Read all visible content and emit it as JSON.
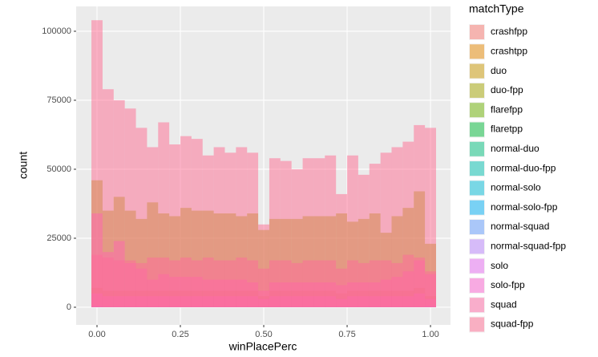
{
  "chart_data": {
    "type": "histogram",
    "x_label": "winPlacePerc",
    "y_label": "count",
    "legend_title": "matchType",
    "bins": [
      -0.0167,
      0.0167,
      0.05,
      0.0833,
      0.1167,
      0.15,
      0.1833,
      0.2167,
      0.25,
      0.2833,
      0.3167,
      0.35,
      0.3833,
      0.4167,
      0.45,
      0.4833,
      0.5167,
      0.55,
      0.5833,
      0.6167,
      0.65,
      0.6833,
      0.7167,
      0.75,
      0.7833,
      0.8167,
      0.85,
      0.8833,
      0.9167,
      0.95,
      0.9833,
      1.0167
    ],
    "xlim": [
      -0.0625,
      1.06
    ],
    "ylim": [
      -6400,
      109000
    ],
    "xticks": [
      {
        "value": 0,
        "label": "0.00"
      },
      {
        "value": 0.25,
        "label": "0.25"
      },
      {
        "value": 0.5,
        "label": "0.50"
      },
      {
        "value": 0.75,
        "label": "0.75"
      },
      {
        "value": 1,
        "label": "1.00"
      }
    ],
    "yticks": [
      0,
      25000,
      50000,
      75000,
      100000
    ],
    "grid": true,
    "opacity": 0.5,
    "series": [
      {
        "name": "crashfpp",
        "color": "#F8766D",
        "values": [
          300,
          200,
          200,
          200,
          200,
          200,
          200,
          200,
          200,
          200,
          200,
          200,
          200,
          200,
          200,
          100,
          200,
          200,
          200,
          200,
          200,
          200,
          200,
          200,
          200,
          200,
          200,
          200,
          200,
          200,
          300
        ]
      },
      {
        "name": "crashtpp",
        "color": "#E58700",
        "values": [
          20,
          10,
          10,
          10,
          10,
          10,
          10,
          10,
          10,
          10,
          10,
          10,
          10,
          10,
          10,
          10,
          10,
          10,
          10,
          10,
          10,
          10,
          10,
          10,
          10,
          10,
          10,
          10,
          10,
          10,
          20
        ]
      },
      {
        "name": "duo",
        "color": "#C99800",
        "values": [
          7000,
          6000,
          6000,
          6000,
          6000,
          6000,
          6000,
          6000,
          6000,
          6000,
          6000,
          6000,
          6000,
          6000,
          6000,
          4000,
          6000,
          6000,
          6000,
          6000,
          6000,
          6000,
          5000,
          6000,
          6000,
          6000,
          6000,
          6000,
          6000,
          7000,
          4000
        ]
      },
      {
        "name": "duo-fpp",
        "color": "#A3A500",
        "values": [
          46000,
          35000,
          40000,
          35000,
          32000,
          38000,
          34000,
          33000,
          36000,
          35000,
          35000,
          34000,
          34000,
          33000,
          34000,
          28000,
          32000,
          32000,
          32000,
          33000,
          33000,
          33000,
          34000,
          31000,
          32000,
          34000,
          27000,
          33000,
          36000,
          42000,
          23000
        ]
      },
      {
        "name": "flarefpp",
        "color": "#6BB100",
        "values": [
          100,
          50,
          50,
          50,
          50,
          50,
          50,
          50,
          50,
          50,
          50,
          50,
          50,
          50,
          50,
          30,
          50,
          50,
          50,
          50,
          50,
          50,
          50,
          50,
          50,
          50,
          50,
          50,
          50,
          50,
          100
        ]
      },
      {
        "name": "flaretpp",
        "color": "#00BA38",
        "values": [
          300,
          150,
          150,
          150,
          150,
          150,
          150,
          150,
          150,
          150,
          150,
          150,
          150,
          150,
          150,
          100,
          150,
          150,
          150,
          150,
          150,
          150,
          150,
          150,
          150,
          150,
          150,
          150,
          150,
          150,
          300
        ]
      },
      {
        "name": "normal-duo",
        "color": "#00BF7D",
        "values": [
          10,
          5,
          5,
          5,
          5,
          5,
          5,
          5,
          5,
          5,
          5,
          5,
          5,
          5,
          5,
          5,
          5,
          5,
          5,
          5,
          5,
          5,
          5,
          5,
          5,
          5,
          5,
          5,
          5,
          5,
          10
        ]
      },
      {
        "name": "normal-duo-fpp",
        "color": "#00C0AF",
        "values": [
          200,
          100,
          100,
          100,
          100,
          100,
          100,
          100,
          100,
          100,
          100,
          100,
          100,
          100,
          100,
          80,
          100,
          100,
          100,
          100,
          100,
          100,
          100,
          100,
          100,
          100,
          100,
          100,
          100,
          100,
          200
        ]
      },
      {
        "name": "normal-solo",
        "color": "#00BCD8",
        "values": [
          30,
          10,
          10,
          10,
          10,
          10,
          10,
          10,
          10,
          10,
          10,
          10,
          10,
          10,
          10,
          10,
          10,
          10,
          10,
          10,
          10,
          10,
          10,
          10,
          10,
          10,
          10,
          10,
          10,
          10,
          30
        ]
      },
      {
        "name": "normal-solo-fpp",
        "color": "#00B0F6",
        "values": [
          300,
          150,
          150,
          150,
          150,
          150,
          150,
          150,
          150,
          150,
          150,
          150,
          150,
          150,
          150,
          100,
          150,
          150,
          150,
          150,
          150,
          150,
          150,
          150,
          150,
          150,
          150,
          150,
          150,
          150,
          300
        ]
      },
      {
        "name": "normal-squad",
        "color": "#619CFF",
        "values": [
          60,
          30,
          30,
          30,
          30,
          30,
          30,
          30,
          30,
          30,
          30,
          30,
          30,
          30,
          30,
          20,
          30,
          30,
          30,
          30,
          30,
          30,
          30,
          30,
          30,
          30,
          30,
          30,
          30,
          30,
          60
        ]
      },
      {
        "name": "normal-squad-fpp",
        "color": "#B983FF",
        "values": [
          600,
          300,
          300,
          300,
          300,
          300,
          300,
          300,
          300,
          300,
          300,
          300,
          300,
          300,
          300,
          200,
          300,
          300,
          300,
          300,
          300,
          300,
          300,
          300,
          300,
          300,
          300,
          300,
          300,
          300,
          600
        ]
      },
      {
        "name": "solo",
        "color": "#E76BF3",
        "values": [
          5000,
          4000,
          4000,
          4000,
          4000,
          4000,
          4000,
          4000,
          4000,
          4000,
          4000,
          4000,
          4000,
          4000,
          4000,
          3000,
          4000,
          4000,
          4000,
          4000,
          4000,
          4000,
          3000,
          4000,
          4000,
          4000,
          4000,
          4000,
          4000,
          5000,
          3000
        ]
      },
      {
        "name": "solo-fpp",
        "color": "#FD61D1",
        "values": [
          34000,
          20000,
          24000,
          16000,
          14000,
          10000,
          12000,
          11000,
          11000,
          11000,
          10000,
          10000,
          10000,
          10000,
          9000,
          6000,
          9000,
          9000,
          9000,
          9000,
          9000,
          9000,
          8000,
          9000,
          9000,
          9000,
          10000,
          11000,
          13000,
          17000,
          12000
        ]
      },
      {
        "name": "squad",
        "color": "#FF67A4",
        "values": [
          19000,
          18000,
          17000,
          17000,
          16000,
          18000,
          18000,
          17000,
          18000,
          17000,
          18000,
          17000,
          17000,
          18000,
          17000,
          14000,
          17000,
          17000,
          16000,
          17000,
          17000,
          17000,
          14000,
          17000,
          16000,
          17000,
          17000,
          16000,
          19000,
          18000,
          13000
        ]
      },
      {
        "name": "squad-fpp",
        "color": "#FF6C91",
        "values": [
          104000,
          79000,
          75000,
          72000,
          65000,
          58000,
          67000,
          59000,
          62000,
          61000,
          55000,
          58000,
          56000,
          58000,
          56000,
          30000,
          54000,
          53000,
          50000,
          54000,
          54000,
          55000,
          41000,
          55000,
          48000,
          52000,
          56000,
          58000,
          60000,
          66000,
          65000
        ]
      }
    ]
  }
}
